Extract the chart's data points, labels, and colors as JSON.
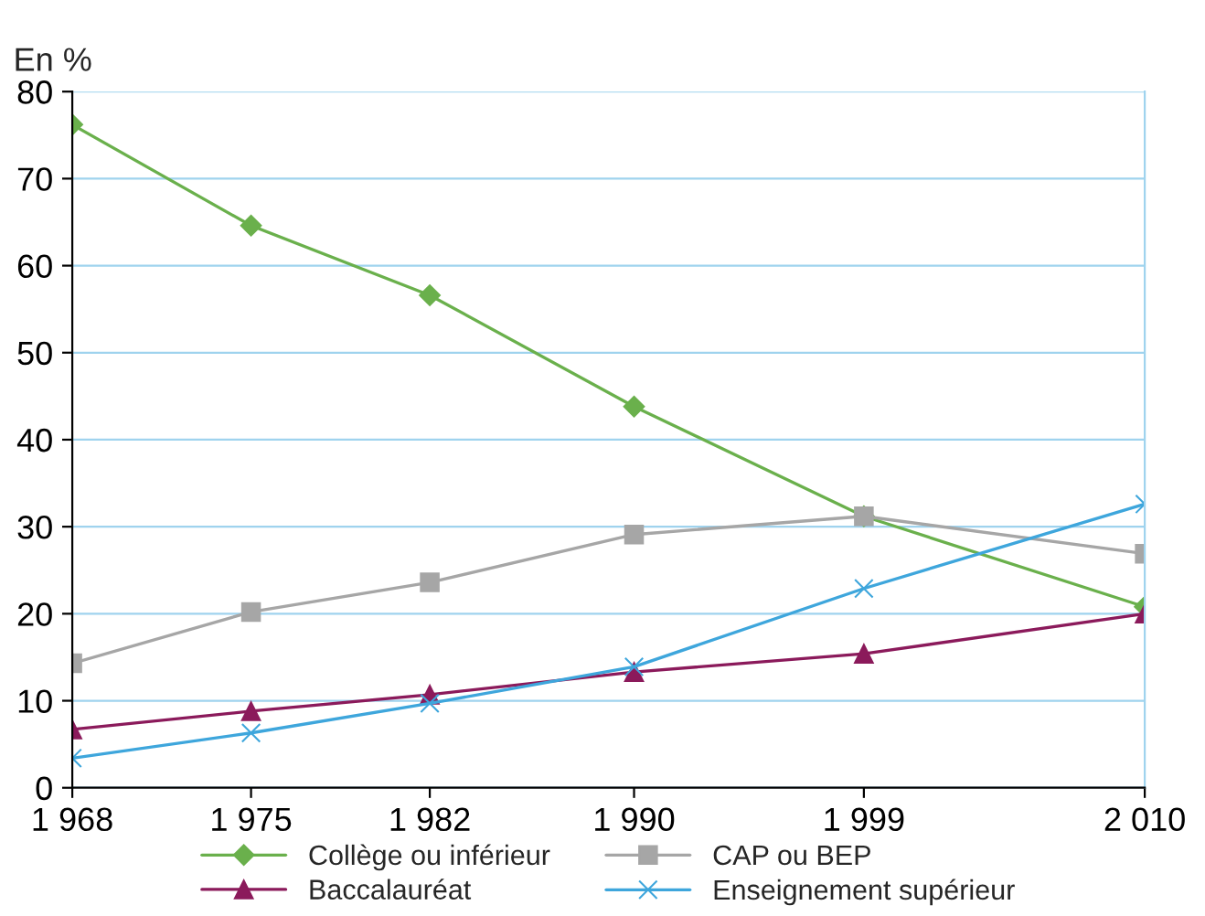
{
  "chart_data": {
    "type": "line",
    "ylabel": "En %",
    "x": [
      1968,
      1975,
      1982,
      1990,
      1999,
      2010
    ],
    "xlim": [
      1968,
      2010
    ],
    "xticks": [
      {
        "value": 1968,
        "label": "1 968"
      },
      {
        "value": 1975,
        "label": "1 975"
      },
      {
        "value": 1982,
        "label": "1 982"
      },
      {
        "value": 1990,
        "label": "1 990"
      },
      {
        "value": 1999,
        "label": "1 999"
      },
      {
        "value": 2010,
        "label": "2 010"
      }
    ],
    "ylim": [
      0,
      80
    ],
    "yticks": [
      0,
      10,
      20,
      30,
      40,
      50,
      60,
      70,
      80
    ],
    "grid": "y",
    "legend": "bottom",
    "series": [
      {
        "name": "Collège ou inférieur",
        "color": "#6ab04c",
        "marker": "diamond",
        "values": [
          76.2,
          64.6,
          56.6,
          43.8,
          31.2,
          20.8
        ]
      },
      {
        "name": "CAP ou BEP",
        "color": "#a6a6a6",
        "marker": "square",
        "values": [
          14.3,
          20.2,
          23.6,
          29.1,
          31.2,
          26.9
        ]
      },
      {
        "name": "Baccalauréat",
        "color": "#8b1a5b",
        "marker": "triangle",
        "values": [
          6.7,
          8.8,
          10.7,
          13.3,
          15.4,
          20.0
        ]
      },
      {
        "name": "Enseignement supérieur",
        "color": "#3ea6dc",
        "marker": "cross",
        "values": [
          3.4,
          6.3,
          9.7,
          13.9,
          22.9,
          32.6
        ]
      }
    ]
  }
}
